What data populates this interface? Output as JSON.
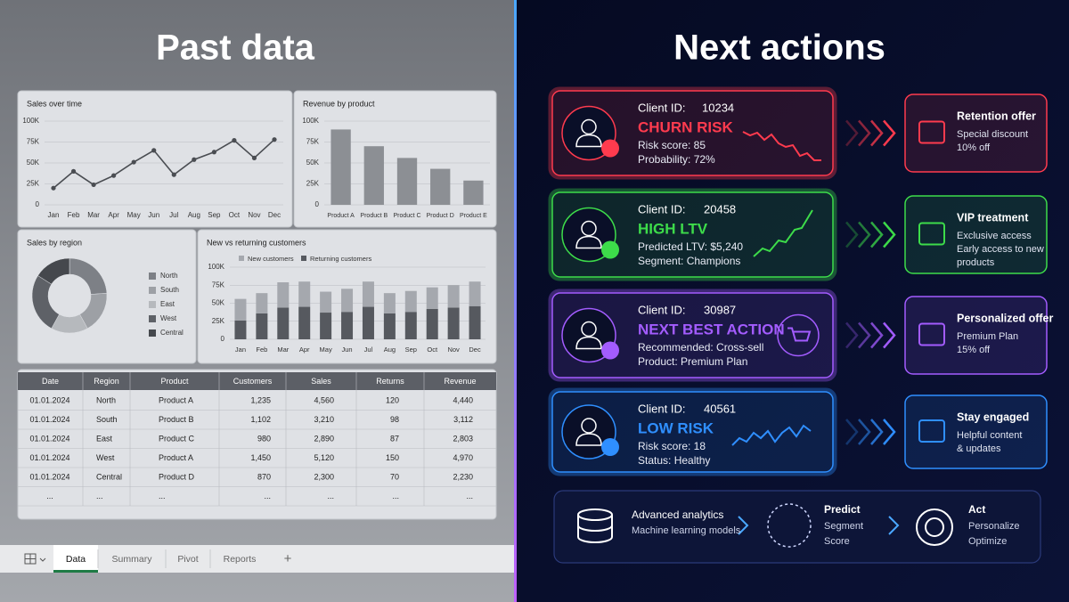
{
  "past": {
    "title": "Past data",
    "charts": [
      {
        "type": "line",
        "title": "Sales over time",
        "color": "#4a4d52",
        "categories": [
          "Jan",
          "Feb",
          "Mar",
          "Apr",
          "May",
          "Jun",
          "Jul",
          "Aug",
          "Sep",
          "Oct",
          "Nov",
          "Dec"
        ],
        "values": [
          20000,
          40000,
          24000,
          35000,
          51000,
          65000,
          36000,
          54000,
          63000,
          77000,
          56000,
          78000
        ],
        "ylim": [
          0,
          100000
        ],
        "yticks": [
          0,
          {
            "value": 25000,
            "label": "25K"
          },
          {
            "value": 50000,
            "label": "50K"
          },
          {
            "value": 75000,
            "label": "75K"
          },
          {
            "value": 100000,
            "label": "100K"
          }
        ],
        "grid": true
      },
      {
        "type": "bar",
        "title": "Revenue by product",
        "color": "#8c8f94",
        "categories": [
          "Product A",
          "Product B",
          "Product C",
          "Product D",
          "Product E"
        ],
        "values": [
          90000,
          70000,
          56000,
          43000,
          29000
        ],
        "ylim": [
          0,
          100000
        ],
        "yticks": [
          0,
          {
            "value": 25000,
            "label": "25K"
          },
          {
            "value": 50000,
            "label": "50K"
          },
          {
            "value": 75000,
            "label": "75K"
          },
          {
            "value": 100000,
            "label": "100K"
          }
        ],
        "grid": true
      },
      {
        "type": "donut",
        "title": "Sales by region",
        "categories": [
          "North",
          "South",
          "East",
          "West",
          "Central"
        ],
        "values": [
          24,
          18,
          16,
          26,
          16
        ],
        "colors": [
          "#7d8086",
          "#9da0a5",
          "#b6b9bd",
          "#5e6167",
          "#45484d"
        ]
      },
      {
        "type": "stacked_bar",
        "title": "New vs returning customers",
        "categories": [
          "Jan",
          "Feb",
          "Mar",
          "Apr",
          "May",
          "Jun",
          "Jul",
          "Aug",
          "Sep",
          "Oct",
          "Nov",
          "Dec"
        ],
        "series": [
          {
            "name": "New customers",
            "color": "#a5a8ae",
            "values": [
              30000,
              28000,
              35000,
              35000,
              29000,
              32000,
              35000,
              28000,
              29000,
              30000,
              31000,
              34000
            ]
          },
          {
            "name": "Returning customers",
            "color": "#56595f",
            "values": [
              26000,
              36000,
              44000,
              45000,
              37000,
              38000,
              45000,
              36000,
              38000,
              42000,
              44000,
              46000
            ]
          }
        ],
        "ylim": [
          0,
          100000
        ],
        "yticks": [
          0,
          {
            "value": 25000,
            "label": "25K"
          },
          {
            "value": 50000,
            "label": "50K"
          },
          {
            "value": 75000,
            "label": "75K"
          },
          {
            "value": 100000,
            "label": "100K"
          }
        ],
        "grid": true
      }
    ],
    "table": {
      "columns": [
        "Date",
        "Region",
        "Product",
        "Customers",
        "Sales",
        "Returns",
        "Revenue"
      ],
      "rows": [
        [
          "01.01.2024",
          "North",
          "Product A",
          "1,235",
          "4,560",
          "120",
          "4,440"
        ],
        [
          "01.01.2024",
          "South",
          "Product B",
          "1,102",
          "3,210",
          "98",
          "3,112"
        ],
        [
          "01.01.2024",
          "East",
          "Product C",
          "980",
          "2,890",
          "87",
          "2,803"
        ],
        [
          "01.01.2024",
          "West",
          "Product A",
          "1,450",
          "5,120",
          "150",
          "4,970"
        ],
        [
          "01.01.2024",
          "Central",
          "Product D",
          "870",
          "2,300",
          "70",
          "2,230"
        ],
        [
          "...",
          "...",
          "...",
          "...",
          "...",
          "...",
          "..."
        ]
      ]
    },
    "tabs": [
      "Data",
      "Summary",
      "Pivot",
      "Reports",
      "+"
    ]
  },
  "next": {
    "title": "Next actions",
    "cards": [
      {
        "client_label": "Client ID:",
        "client_id": "10234",
        "status": "CHURN RISK",
        "color": "#ff3b4e",
        "details": [
          "Risk score: 85",
          "Probability: 72%"
        ],
        "offer": {
          "title": "Retention offer",
          "lines": [
            "Special discount",
            "10% off"
          ]
        }
      },
      {
        "client_label": "Client ID:",
        "client_id": "20458",
        "status": "HIGH LTV",
        "color": "#3ddc4a",
        "details": [
          "Predicted LTV: $5,240",
          "Segment: Champions"
        ],
        "offer": {
          "title": "VIP treatment",
          "lines": [
            "Exclusive access",
            "Early access to new",
            "products"
          ]
        }
      },
      {
        "client_label": "Client ID:",
        "client_id": "30987",
        "status": "NEXT BEST ACTION",
        "color": "#a35cff",
        "details": [
          "Recommended: Cross-sell",
          "Product: Premium Plan"
        ],
        "offer": {
          "title": "Personalized offer",
          "lines": [
            "Premium Plan",
            "15% off"
          ]
        }
      },
      {
        "client_label": "Client ID:",
        "client_id": "40561",
        "status": "LOW RISK",
        "color": "#2f8fff",
        "details": [
          "Risk score: 18",
          "Status: Healthy"
        ],
        "offer": {
          "title": "Stay engaged",
          "lines": [
            "Helpful content",
            "& updates"
          ]
        }
      }
    ],
    "pipeline": [
      {
        "title": "Advanced analytics",
        "lines": [
          "Machine learning models"
        ]
      },
      {
        "title": "Predict",
        "lines": [
          "Segment",
          "Score"
        ]
      },
      {
        "title": "Act",
        "lines": [
          "Personalize",
          "Optimize"
        ]
      }
    ]
  }
}
